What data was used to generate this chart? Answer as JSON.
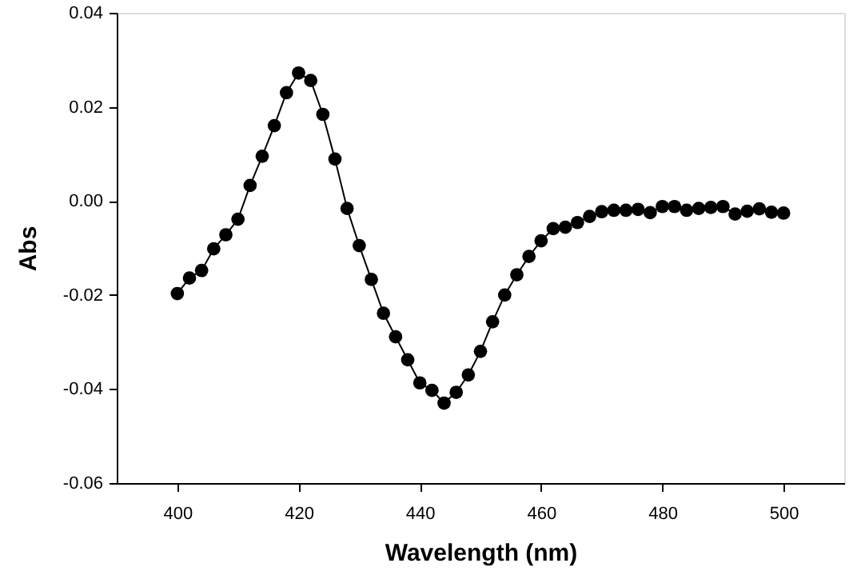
{
  "chart_data": {
    "type": "line",
    "xlabel": "Wavelength (nm)",
    "ylabel": "Abs",
    "x": [
      400,
      402,
      404,
      406,
      408,
      410,
      412,
      414,
      416,
      418,
      420,
      422,
      424,
      426,
      428,
      430,
      432,
      434,
      436,
      438,
      440,
      442,
      444,
      446,
      448,
      450,
      452,
      454,
      456,
      458,
      460,
      462,
      464,
      466,
      468,
      470,
      472,
      474,
      476,
      478,
      480,
      482,
      484,
      486,
      488,
      490,
      492,
      494,
      496,
      498,
      500
    ],
    "series": [
      {
        "color": "#000000",
        "values": [
          -0.0197,
          -0.0164,
          -0.0148,
          -0.0102,
          -0.0072,
          -0.0039,
          0.0033,
          0.0095,
          0.016,
          0.023,
          0.0272,
          0.0256,
          0.0184,
          0.0089,
          -0.0016,
          -0.0095,
          -0.0167,
          -0.0239,
          -0.0289,
          -0.0338,
          -0.0387,
          -0.0403,
          -0.043,
          -0.0407,
          -0.037,
          -0.032,
          -0.0257,
          -0.02,
          -0.0157,
          -0.0118,
          -0.0085,
          -0.0059,
          -0.0056,
          -0.0046,
          -0.0033,
          -0.0023,
          -0.002,
          -0.002,
          -0.0018,
          -0.0025,
          -0.0012,
          -0.0012,
          -0.002,
          -0.0016,
          -0.0014,
          -0.0012,
          -0.0028,
          -0.0022,
          -0.0017,
          -0.0024,
          -0.0026
        ]
      }
    ],
    "xlim": [
      390,
      510
    ],
    "xticks": [
      400,
      420,
      440,
      460,
      480,
      500
    ],
    "ylim": [
      -0.06,
      0.04
    ],
    "yticks": [
      {
        "value": -0.06,
        "label": "-0.06"
      },
      {
        "value": -0.04,
        "label": "-0.04"
      },
      {
        "value": -0.02,
        "label": "-0.02"
      },
      {
        "value": 0,
        "label": "0.00"
      },
      {
        "value": 0.02,
        "label": "0.02"
      },
      {
        "value": 0.04,
        "label": "0.04"
      }
    ],
    "marker": "circle",
    "line_style": "solid",
    "grid": false
  }
}
